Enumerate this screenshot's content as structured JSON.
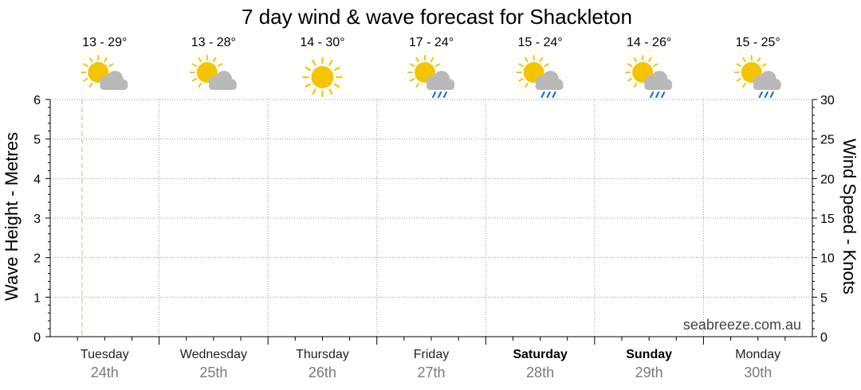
{
  "chart_data": {
    "type": "line",
    "title": "7 day wind & wave forecast for Shackleton",
    "left_axis": {
      "label": "Wave Height - Metres",
      "ylim": [
        0,
        6
      ],
      "ticks": [
        "0",
        "1",
        "2",
        "3",
        "4",
        "5",
        "6"
      ]
    },
    "right_axis": {
      "label": "Wind Speed - Knots",
      "ylim": [
        0,
        30
      ],
      "ticks": [
        "0",
        "5",
        "10",
        "15",
        "20",
        "25",
        "30"
      ]
    },
    "days": [
      {
        "name": "Tuesday",
        "date": "24th",
        "temp": "13 - 29°",
        "icon": "partly-cloudy-icon",
        "weekend": false
      },
      {
        "name": "Wednesday",
        "date": "25th",
        "temp": "13 - 28°",
        "icon": "partly-cloudy-icon",
        "weekend": false
      },
      {
        "name": "Thursday",
        "date": "26th",
        "temp": "14 - 30°",
        "icon": "sunny-icon",
        "weekend": false
      },
      {
        "name": "Friday",
        "date": "27th",
        "temp": "17 - 24°",
        "icon": "showers-icon",
        "weekend": false
      },
      {
        "name": "Saturday",
        "date": "28th",
        "temp": "15 - 24°",
        "icon": "showers-icon",
        "weekend": true
      },
      {
        "name": "Sunday",
        "date": "29th",
        "temp": "14 - 26°",
        "icon": "showers-icon",
        "weekend": true
      },
      {
        "name": "Monday",
        "date": "30th",
        "temp": "15 - 25°",
        "icon": "showers-icon",
        "weekend": false
      }
    ],
    "series": [],
    "grid": true,
    "watermark": "seabreeze.com.au"
  },
  "colors": {
    "sun": "#f5c400",
    "sun_rays": "#f5c400",
    "cloud": "#b9b9b9",
    "rain": "#1e73d6",
    "now_line": "#f0a090",
    "grid": "#999999"
  }
}
